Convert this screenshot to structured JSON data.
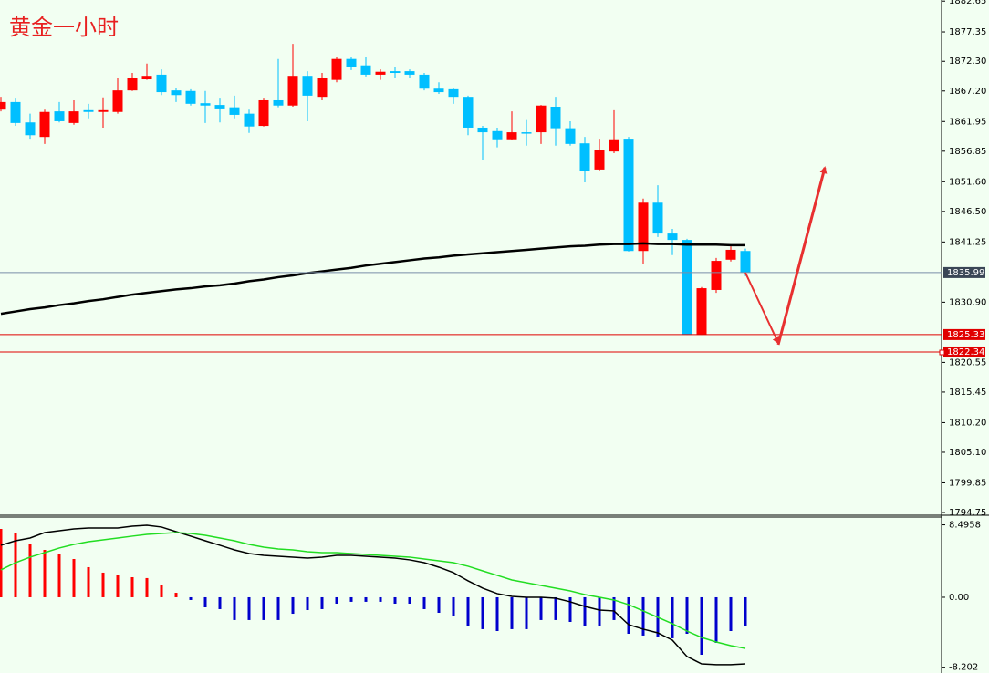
{
  "chart_data": [
    {
      "type": "candlestick",
      "title": "黄金一小时",
      "ylim": [
        1794.28,
        1882.84
      ],
      "yticks": [
        {
          "value": 1882.65,
          "label": "1882.65"
        },
        {
          "value": 1877.35,
          "label": "1877.35"
        },
        {
          "value": 1872.3,
          "label": "1872.30"
        },
        {
          "value": 1867.2,
          "label": "1867.20"
        },
        {
          "value": 1861.95,
          "label": "1861.95"
        },
        {
          "value": 1856.85,
          "label": "1856.85"
        },
        {
          "value": 1851.6,
          "label": "1851.60"
        },
        {
          "value": 1846.5,
          "label": "1846.50"
        },
        {
          "value": 1841.25,
          "label": "1841.25"
        },
        {
          "value": 1830.9,
          "label": "1830.90"
        },
        {
          "value": 1820.55,
          "label": "1820.55"
        },
        {
          "value": 1815.45,
          "label": "1815.45"
        },
        {
          "value": 1810.2,
          "label": "1810.20"
        },
        {
          "value": 1805.1,
          "label": "1805.10"
        },
        {
          "value": 1799.85,
          "label": "1799.85"
        },
        {
          "value": 1794.75,
          "label": "1794.75"
        }
      ],
      "up_color": "#ff0000",
      "down_color": "#00bfff",
      "open": [
        1864.0,
        1865.3,
        1861.8,
        1859.3,
        1863.7,
        1861.7,
        1863.9,
        1863.6,
        1863.6,
        1867.3,
        1869.2,
        1870.0,
        1867.3,
        1867.2,
        1865.1,
        1864.8,
        1864.4,
        1863.3,
        1861.2,
        1865.6,
        1864.7,
        1869.8,
        1866.2,
        1869.1,
        1872.7,
        1871.6,
        1870.0,
        1870.6,
        1870.6,
        1870.0,
        1867.6,
        1867.5,
        1866.2,
        1860.9,
        1860.3,
        1858.9,
        1860.1,
        1860.1,
        1864.5,
        1860.8,
        1858.2,
        1853.7,
        1856.8,
        1859.0,
        1839.7,
        1848.0,
        1842.7,
        1841.6,
        1825.3,
        1833.0,
        1838.2,
        1839.7
      ],
      "high": [
        1866.2,
        1865.9,
        1863.3,
        1864.0,
        1865.3,
        1865.6,
        1865.0,
        1866.1,
        1869.4,
        1870.3,
        1871.9,
        1870.9,
        1867.8,
        1867.5,
        1867.2,
        1865.9,
        1866.4,
        1864.0,
        1865.9,
        1872.7,
        1875.3,
        1870.6,
        1870.3,
        1873.1,
        1873.0,
        1873.0,
        1870.9,
        1871.4,
        1870.9,
        1870.3,
        1868.7,
        1867.8,
        1866.4,
        1861.2,
        1860.9,
        1863.7,
        1862.2,
        1864.8,
        1866.2,
        1862.0,
        1859.3,
        1859.0,
        1863.9,
        1859.3,
        1848.7,
        1851.0,
        1843.5,
        1841.8,
        1833.5,
        1838.5,
        1840.5,
        1840.1
      ],
      "low": [
        1863.7,
        1861.2,
        1859.0,
        1858.1,
        1861.8,
        1861.4,
        1862.5,
        1860.9,
        1863.3,
        1867.2,
        1869.1,
        1866.5,
        1865.3,
        1864.7,
        1861.7,
        1861.8,
        1862.5,
        1860.0,
        1861.1,
        1864.4,
        1864.5,
        1862.0,
        1865.6,
        1868.7,
        1870.8,
        1869.7,
        1869.1,
        1869.5,
        1869.4,
        1867.3,
        1866.7,
        1865.0,
        1859.6,
        1855.4,
        1857.5,
        1858.7,
        1857.8,
        1858.1,
        1857.8,
        1857.8,
        1851.5,
        1853.5,
        1856.5,
        1839.6,
        1837.4,
        1842.1,
        1839.0,
        1825.3,
        1825.3,
        1832.5,
        1837.9,
        1835.4
      ],
      "close": [
        1865.3,
        1861.7,
        1859.6,
        1863.6,
        1862.0,
        1863.7,
        1863.6,
        1863.9,
        1867.3,
        1869.4,
        1869.8,
        1867.0,
        1866.5,
        1865.0,
        1864.7,
        1864.2,
        1863.1,
        1861.1,
        1865.6,
        1864.7,
        1869.8,
        1866.4,
        1869.4,
        1872.7,
        1871.4,
        1870.0,
        1870.5,
        1870.3,
        1870.0,
        1867.6,
        1867.0,
        1866.2,
        1860.9,
        1860.1,
        1858.9,
        1860.1,
        1860.0,
        1864.7,
        1860.8,
        1858.1,
        1853.5,
        1857.0,
        1858.9,
        1839.7,
        1848.0,
        1842.7,
        1841.6,
        1825.3,
        1833.3,
        1838.0,
        1839.9,
        1836.0
      ],
      "ma": {
        "color": "#000000",
        "values": [
          1828.9,
          1829.3,
          1829.7,
          1830.0,
          1830.4,
          1830.7,
          1831.1,
          1831.4,
          1831.8,
          1832.2,
          1832.5,
          1832.8,
          1833.1,
          1833.3,
          1833.6,
          1833.8,
          1834.1,
          1834.5,
          1834.8,
          1835.2,
          1835.5,
          1835.9,
          1836.2,
          1836.5,
          1836.8,
          1837.2,
          1837.5,
          1837.8,
          1838.1,
          1838.4,
          1838.6,
          1838.9,
          1839.1,
          1839.3,
          1839.5,
          1839.7,
          1839.9,
          1840.1,
          1840.3,
          1840.5,
          1840.6,
          1840.8,
          1840.9,
          1840.9,
          1841.0,
          1840.9,
          1840.9,
          1840.8,
          1840.8,
          1840.8,
          1840.7,
          1840.7
        ]
      },
      "levels": [
        {
          "value": 1835.99,
          "color": "#7a8ea8",
          "label_color": "#3a4656"
        },
        {
          "value": 1825.33,
          "color": "#e00000",
          "label_color": "#e00000"
        },
        {
          "value": 1822.34,
          "color": "#e00000",
          "label_color": "#e00000"
        }
      ]
    },
    {
      "type": "macd",
      "ylim": [
        -8.88,
        9.41
      ],
      "yticks": [
        8.4958,
        {
          "value": 0,
          "label": "0.00"
        },
        -8.202
      ],
      "histogram": {
        "up_color": "#ff0000",
        "down_color": "#0000cc",
        "values": [
          8.02,
          7.49,
          6.2,
          5.56,
          5.03,
          4.49,
          3.53,
          2.89,
          2.57,
          2.35,
          2.25,
          1.39,
          0.53,
          -0.32,
          -1.18,
          -1.39,
          -2.67,
          -2.67,
          -2.67,
          -2.67,
          -1.93,
          -1.5,
          -1.39,
          -0.75,
          -0.53,
          -0.53,
          -0.53,
          -0.75,
          -0.75,
          -1.39,
          -1.82,
          -2.25,
          -3.32,
          -3.74,
          -3.96,
          -3.74,
          -3.74,
          -2.67,
          -2.67,
          -2.89,
          -3.32,
          -3.32,
          -2.67,
          -4.28,
          -4.49,
          -4.6,
          -4.81,
          -4.28,
          -6.74,
          -5.35,
          -3.96,
          -3.32
        ]
      },
      "lines": [
        {
          "color": "#000000",
          "values": [
            6.1,
            6.63,
            6.95,
            7.59,
            7.81,
            8.02,
            8.13,
            8.13,
            8.13,
            8.34,
            8.45,
            8.24,
            7.7,
            7.17,
            6.63,
            6.1,
            5.56,
            5.13,
            4.92,
            4.81,
            4.71,
            4.6,
            4.71,
            4.92,
            4.92,
            4.81,
            4.71,
            4.6,
            4.39,
            4.06,
            3.53,
            2.89,
            1.93,
            1.07,
            0.43,
            0.11,
            0,
            0,
            -0.11,
            -0.53,
            -1.07,
            -1.5,
            -1.6,
            -3.21,
            -3.74,
            -4.17,
            -5.03,
            -6.95,
            -7.81,
            -7.91,
            -7.91,
            -7.81
          ]
        },
        {
          "color": "#22dd22",
          "values": [
            3.21,
            4.06,
            4.71,
            5.24,
            5.78,
            6.2,
            6.52,
            6.74,
            6.95,
            7.17,
            7.38,
            7.49,
            7.59,
            7.49,
            7.27,
            6.95,
            6.63,
            6.2,
            5.88,
            5.67,
            5.56,
            5.35,
            5.24,
            5.24,
            5.13,
            5.03,
            4.92,
            4.81,
            4.71,
            4.49,
            4.28,
            4.06,
            3.64,
            3.1,
            2.57,
            2.03,
            1.71,
            1.39,
            1.07,
            0.75,
            0.32,
            0,
            -0.32,
            -0.86,
            -1.6,
            -2.35,
            -3.1,
            -3.96,
            -4.71,
            -5.24,
            -5.67,
            -5.99
          ]
        }
      ]
    }
  ]
}
